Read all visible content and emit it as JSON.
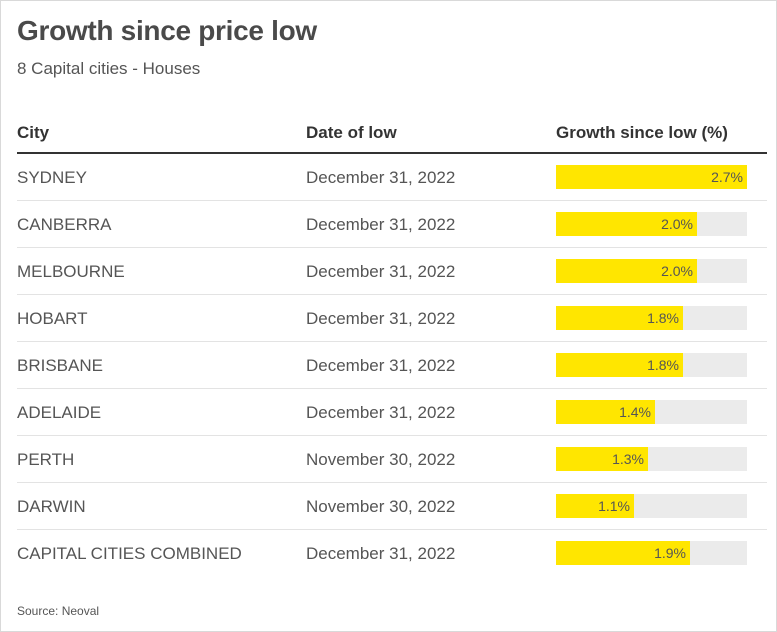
{
  "title": "Growth since price low",
  "subtitle": "8 Capital cities - Houses",
  "columns": {
    "city": "City",
    "date": "Date of low",
    "growth": "Growth since low (%)"
  },
  "source": "Source: Neoval",
  "colors": {
    "bar": "#ffe600",
    "track": "#ebebeb",
    "text": "#555555",
    "header_rule": "#333333"
  },
  "chart_data": {
    "type": "table",
    "title": "Growth since price low",
    "subtitle": "8 Capital cities - Houses",
    "columns": [
      "City",
      "Date of low",
      "Growth since low (%)"
    ],
    "value_range": [
      0,
      2.7
    ],
    "rows": [
      {
        "city": "SYDNEY",
        "date": "December 31, 2022",
        "growth": 2.7,
        "label": "2.7%"
      },
      {
        "city": "CANBERRA",
        "date": "December 31, 2022",
        "growth": 2.0,
        "label": "2.0%"
      },
      {
        "city": "MELBOURNE",
        "date": "December 31, 2022",
        "growth": 2.0,
        "label": "2.0%"
      },
      {
        "city": "HOBART",
        "date": "December 31, 2022",
        "growth": 1.8,
        "label": "1.8%"
      },
      {
        "city": "BRISBANE",
        "date": "December 31, 2022",
        "growth": 1.8,
        "label": "1.8%"
      },
      {
        "city": "ADELAIDE",
        "date": "December 31, 2022",
        "growth": 1.4,
        "label": "1.4%"
      },
      {
        "city": "PERTH",
        "date": "November 30, 2022",
        "growth": 1.3,
        "label": "1.3%"
      },
      {
        "city": "DARWIN",
        "date": "November 30, 2022",
        "growth": 1.1,
        "label": "1.1%"
      },
      {
        "city": "CAPITAL CITIES COMBINED",
        "date": "December 31, 2022",
        "growth": 1.9,
        "label": "1.9%"
      }
    ]
  }
}
